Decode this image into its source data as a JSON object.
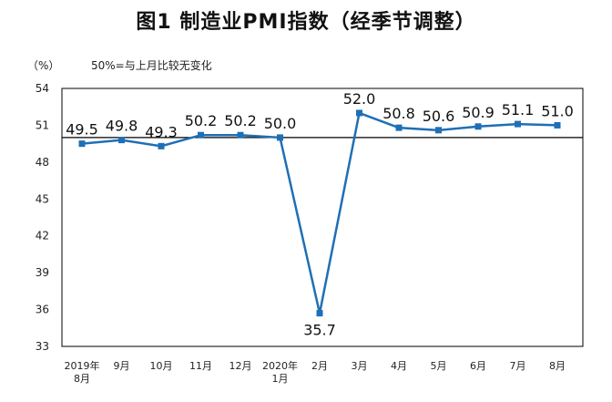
{
  "title": "图1  制造业PMI指数（经季节调整）",
  "unit_label": "（%）",
  "note": "50%=与上月比较无变化",
  "chart_data": {
    "type": "line",
    "title": "图1  制造业PMI指数（经季节调整）",
    "ylabel": "（%）",
    "annotation": "50%=与上月比较无变化",
    "ylim": [
      33,
      54
    ],
    "yticks": [
      33,
      36,
      39,
      42,
      45,
      48,
      51,
      54
    ],
    "reference_line": 50,
    "categories": [
      [
        "2019年",
        "8月"
      ],
      [
        "9月"
      ],
      [
        "10月"
      ],
      [
        "11月"
      ],
      [
        "12月"
      ],
      [
        "2020年",
        "1月"
      ],
      [
        "2月"
      ],
      [
        "3月"
      ],
      [
        "4月"
      ],
      [
        "5月"
      ],
      [
        "6月"
      ],
      [
        "7月"
      ],
      [
        "8月"
      ]
    ],
    "values": [
      49.5,
      49.8,
      49.3,
      50.2,
      50.2,
      50.0,
      35.7,
      52.0,
      50.8,
      50.6,
      50.9,
      51.1,
      51.0
    ],
    "data_labels": [
      "49.5",
      "49.8",
      "49.3",
      "50.2",
      "50.2",
      "50.0",
      "35.7",
      "52.0",
      "50.8",
      "50.6",
      "50.9",
      "51.1",
      "51.0"
    ],
    "colors": {
      "line": "#1f6fb5",
      "reference": "#000000",
      "frame": "#000000"
    },
    "grid": false,
    "legend": "none"
  }
}
